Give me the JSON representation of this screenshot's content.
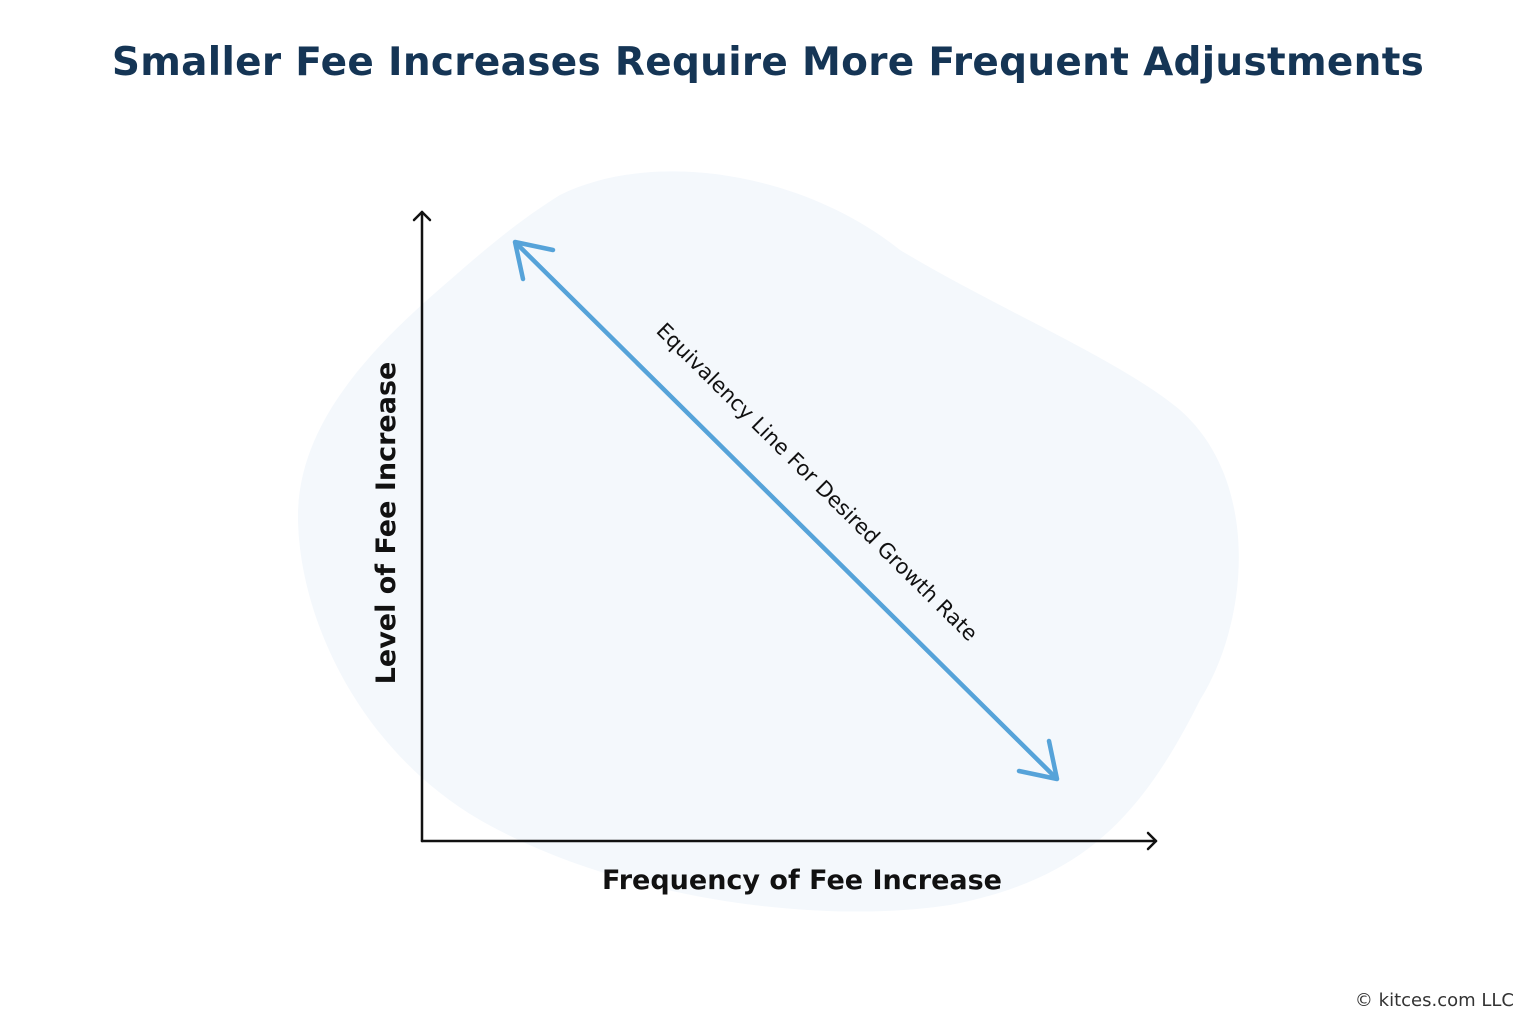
{
  "title": "Smaller Fee Increases Require More Frequent Adjustments",
  "x_axis_label": "Frequency of Fee Increase",
  "y_axis_label": "Level of Fee Increase",
  "line_label": "Equivalency Line For Desired Growth Rate",
  "credit": "© kitces.com LLC",
  "colors": {
    "title": "#153555",
    "line": "#56a3d9",
    "background_blob": "#f4f8fc",
    "axes": "#111111"
  }
}
